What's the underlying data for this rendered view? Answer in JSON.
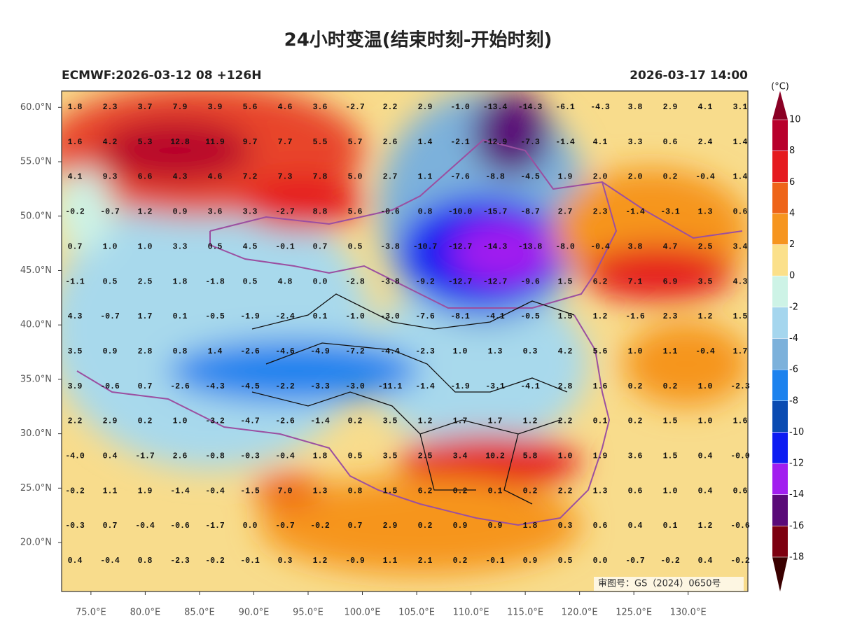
{
  "header": {
    "title": "24小时变温(结束时刻-开始时刻)",
    "left": "ECMWF:2026-03-12 08 +126H",
    "right": "2026-03-17 14:00"
  },
  "map": {
    "xlim": [
      72.3,
      135.5
    ],
    "ylim": [
      15.5,
      61.5
    ],
    "xticks": [
      {
        "value": 75,
        "label": "75.0°E"
      },
      {
        "value": 80,
        "label": "80.0°E"
      },
      {
        "value": 85,
        "label": "85.0°E"
      },
      {
        "value": 90,
        "label": "90.0°E"
      },
      {
        "value": 95,
        "label": "95.0°E"
      },
      {
        "value": 100,
        "label": "100.0°E"
      },
      {
        "value": 105,
        "label": "105.0°E"
      },
      {
        "value": 110,
        "label": "110.0°E"
      },
      {
        "value": 115,
        "label": "115.0°E"
      },
      {
        "value": 120,
        "label": "120.0°E"
      },
      {
        "value": 125,
        "label": "125.0°E"
      },
      {
        "value": 130,
        "label": "130.0°E"
      }
    ],
    "yticks": [
      {
        "value": 60,
        "label": "60.0°N"
      },
      {
        "value": 55,
        "label": "55.0°N"
      },
      {
        "value": 50,
        "label": "50.0°N"
      },
      {
        "value": 45,
        "label": "45.0°N"
      },
      {
        "value": 40,
        "label": "40.0°N"
      },
      {
        "value": 35,
        "label": "35.0°N"
      },
      {
        "value": 30,
        "label": "30.0°N"
      },
      {
        "value": 25,
        "label": "25.0°N"
      },
      {
        "value": 20,
        "label": "20.0°N"
      }
    ],
    "grid_values": [
      [
        "1.8",
        "2.3",
        "3.7",
        "7.9",
        "3.9",
        "5.6",
        "4.6",
        "3.6",
        "-2.7",
        "2.2",
        "2.9",
        "-1.0",
        "-13.4",
        "-14.3",
        "-6.1",
        "-4.3",
        "3.8",
        "2.9",
        "4.1",
        "3.1"
      ],
      [
        "1.6",
        "4.2",
        "5.3",
        "12.8",
        "11.9",
        "9.7",
        "7.7",
        "5.5",
        "5.7",
        "2.6",
        "1.4",
        "-2.1",
        "-12.9",
        "-7.3",
        "-1.4",
        "4.1",
        "3.3",
        "0.6",
        "2.4",
        "1.4"
      ],
      [
        "4.1",
        "9.3",
        "6.6",
        "4.3",
        "4.6",
        "7.2",
        "7.3",
        "7.8",
        "5.0",
        "2.7",
        "1.1",
        "-7.6",
        "-8.8",
        "-4.5",
        "1.9",
        "2.0",
        "2.0",
        "0.2",
        "-0.4",
        "1.4"
      ],
      [
        "-0.2",
        "-0.7",
        "1.2",
        "0.9",
        "3.6",
        "3.3",
        "-2.7",
        "8.8",
        "5.6",
        "-0.6",
        "0.8",
        "-10.0",
        "-15.7",
        "-8.7",
        "2.7",
        "2.3",
        "-1.4",
        "-3.1",
        "1.3",
        "0.6"
      ],
      [
        "0.7",
        "1.0",
        "1.0",
        "3.3",
        "0.5",
        "4.5",
        "-0.1",
        "0.7",
        "0.5",
        "-3.8",
        "-10.7",
        "-12.7",
        "-14.3",
        "-13.8",
        "-8.0",
        "-0.4",
        "3.8",
        "4.7",
        "2.5",
        "3.4"
      ],
      [
        "-1.1",
        "0.5",
        "2.5",
        "1.8",
        "-1.8",
        "0.5",
        "4.8",
        "0.0",
        "-2.8",
        "-3.8",
        "-9.2",
        "-12.7",
        "-12.7",
        "-9.6",
        "1.5",
        "6.2",
        "7.1",
        "6.9",
        "3.5",
        "4.3"
      ],
      [
        "4.3",
        "-0.7",
        "1.7",
        "0.1",
        "-0.5",
        "-1.9",
        "-2.4",
        "0.1",
        "-1.0",
        "-3.0",
        "-7.6",
        "-8.1",
        "-4.1",
        "-0.5",
        "1.5",
        "1.2",
        "-1.6",
        "2.3",
        "1.2",
        "1.5"
      ],
      [
        "3.5",
        "0.9",
        "2.8",
        "0.8",
        "1.4",
        "-2.6",
        "-4.6",
        "-4.9",
        "-7.2",
        "-4.4",
        "-2.3",
        "1.0",
        "1.3",
        "0.3",
        "4.2",
        "5.6",
        "1.0",
        "1.1",
        "-0.4",
        "1.7"
      ],
      [
        "3.9",
        "-0.6",
        "0.7",
        "-2.6",
        "-4.3",
        "-4.5",
        "-2.2",
        "-3.3",
        "-3.0",
        "-11.1",
        "-1.4",
        "-1.9",
        "-3.1",
        "-4.1",
        "2.8",
        "1.6",
        "0.2",
        "0.2",
        "1.0",
        "-2.3"
      ],
      [
        "2.2",
        "2.9",
        "0.2",
        "1.0",
        "-3.2",
        "-4.7",
        "-2.6",
        "-1.4",
        "0.2",
        "3.5",
        "1.2",
        "1.7",
        "1.7",
        "1.2",
        "2.2",
        "0.1",
        "0.2",
        "1.5",
        "1.0",
        "1.6"
      ],
      [
        "-4.0",
        "0.4",
        "-1.7",
        "2.6",
        "-0.8",
        "-0.3",
        "-0.4",
        "1.8",
        "0.5",
        "3.5",
        "2.5",
        "3.4",
        "10.2",
        "5.8",
        "1.0",
        "1.9",
        "3.6",
        "1.5",
        "0.4",
        "-0.0"
      ],
      [
        "-0.2",
        "1.1",
        "1.9",
        "-1.4",
        "-0.4",
        "-1.5",
        "7.0",
        "1.3",
        "0.8",
        "1.5",
        "6.2",
        "0.2",
        "0.1",
        "0.2",
        "2.2",
        "1.3",
        "0.6",
        "1.0",
        "0.4",
        "0.6"
      ],
      [
        "-0.3",
        "0.7",
        "-0.4",
        "-0.6",
        "-1.7",
        "0.0",
        "-0.7",
        "-0.2",
        "0.7",
        "2.9",
        "0.2",
        "0.9",
        "0.9",
        "1.8",
        "0.3",
        "0.6",
        "0.4",
        "0.1",
        "1.2",
        "-0.6"
      ],
      [
        "0.4",
        "-0.4",
        "0.8",
        "-2.3",
        "-0.2",
        "-0.1",
        "0.3",
        "1.2",
        "-0.9",
        "1.1",
        "2.1",
        "0.2",
        "-0.1",
        "0.9",
        "0.5",
        "0.0",
        "-0.7",
        "-0.2",
        "0.4",
        "-0.2"
      ]
    ],
    "stamp": "审图号：GS（2024）0650号"
  },
  "colorbar": {
    "unit": "(°C)",
    "ticks": [
      10,
      8,
      6,
      4,
      2,
      0,
      -2,
      -4,
      -6,
      -8,
      -10,
      -12,
      -14,
      -16,
      -18
    ],
    "colors": [
      "#8a0024",
      "#b8002c",
      "#e51a1f",
      "#ee6419",
      "#f6951f",
      "#fbe08a",
      "#cdf3e6",
      "#a5d6ee",
      "#7cb1db",
      "#1c82ee",
      "#0a4bb2",
      "#0d1cf2",
      "#a11fef",
      "#5a0a78",
      "#7d0010",
      "#3a0000"
    ]
  }
}
